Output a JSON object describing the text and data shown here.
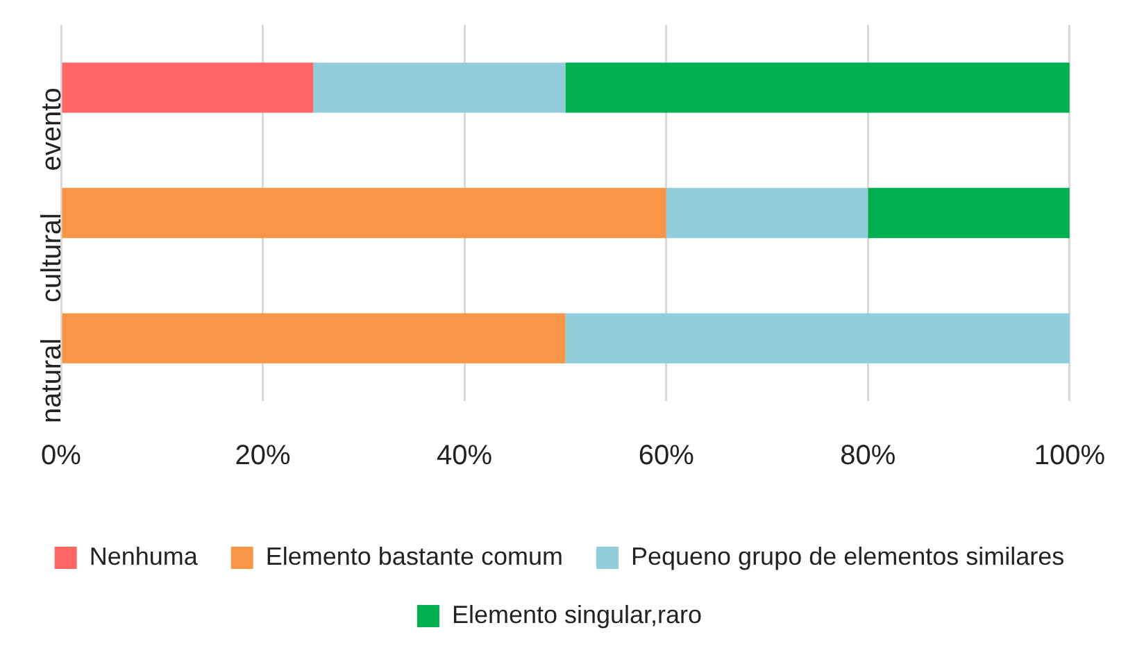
{
  "chart_data": {
    "type": "bar",
    "orientation": "horizontal",
    "stacked": true,
    "categories": [
      "evento",
      "cultural",
      "natural"
    ],
    "series": [
      {
        "name": "Nenhuma",
        "color": "#ff6666",
        "values": [
          25,
          0,
          0
        ]
      },
      {
        "name": "Elemento bastante comum",
        "color": "#f79646",
        "values": [
          0,
          60,
          50
        ]
      },
      {
        "name": "Pequeno grupo de elementos similares",
        "color": "#92cddc",
        "values": [
          25,
          20,
          50
        ]
      },
      {
        "name": "Elemento singular,raro",
        "color": "#00b050",
        "values": [
          50,
          20,
          0
        ]
      }
    ],
    "xlim": [
      0,
      100
    ],
    "xticks": [
      {
        "value": 0,
        "label": "0%"
      },
      {
        "value": 20,
        "label": "20%"
      },
      {
        "value": 40,
        "label": "40%"
      },
      {
        "value": 60,
        "label": "60%"
      },
      {
        "value": 80,
        "label": "80%"
      },
      {
        "value": 100,
        "label": "100%"
      }
    ],
    "grid": "x",
    "legend": "bottom"
  }
}
